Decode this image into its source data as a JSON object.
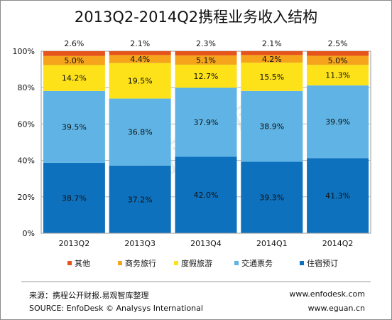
{
  "chart_data": {
    "type": "bar",
    "stacked": true,
    "title": "2013Q2-2014Q2携程业务收入结构",
    "categories": [
      "2013Q2",
      "2013Q3",
      "2013Q4",
      "2014Q1",
      "2014Q2"
    ],
    "y_ticks": [
      "0%",
      "20%",
      "40%",
      "60%",
      "80%",
      "100%"
    ],
    "ylim": [
      0,
      100
    ],
    "grid": true,
    "legend_position": "bottom",
    "series": [
      {
        "name": "住宿预订",
        "color": "#0e71bd",
        "values": [
          38.7,
          37.2,
          42.0,
          39.3,
          41.3
        ],
        "labels": [
          "38.7%",
          "37.2%",
          "42.0%",
          "39.3%",
          "41.3%"
        ]
      },
      {
        "name": "交通票务",
        "color": "#5fb4e5",
        "values": [
          39.5,
          36.8,
          37.9,
          38.9,
          39.9
        ],
        "labels": [
          "39.5%",
          "36.8%",
          "37.9%",
          "38.9%",
          "39.9%"
        ]
      },
      {
        "name": "度假旅游",
        "color": "#fde21a",
        "values": [
          14.2,
          19.5,
          12.7,
          15.5,
          11.3
        ],
        "labels": [
          "14.2%",
          "19.5%",
          "12.7%",
          "15.5%",
          "11.3%"
        ]
      },
      {
        "name": "商务旅行",
        "color": "#f5a41c",
        "values": [
          5.0,
          4.4,
          5.1,
          4.2,
          5.0
        ],
        "labels": [
          "5.0%",
          "4.4%",
          "5.1%",
          "4.2%",
          "5.0%"
        ]
      },
      {
        "name": "其他",
        "color": "#e5541b",
        "values": [
          2.6,
          2.1,
          2.3,
          2.1,
          2.5
        ],
        "labels": [
          "2.6%",
          "2.1%",
          "2.3%",
          "2.1%",
          "2.5%"
        ]
      }
    ],
    "legend_order": [
      "其他",
      "商务旅行",
      "度假旅游",
      "交通票务",
      "住宿预订"
    ]
  },
  "watermark": "易观智库",
  "footer": {
    "source_cn": "来源：携程公开财报.易观智库整理",
    "source_en": "SOURCE: EnfoDesk © Analysys International",
    "url1": "www.enfodesk.com",
    "url2": "www.eguan.cn"
  }
}
